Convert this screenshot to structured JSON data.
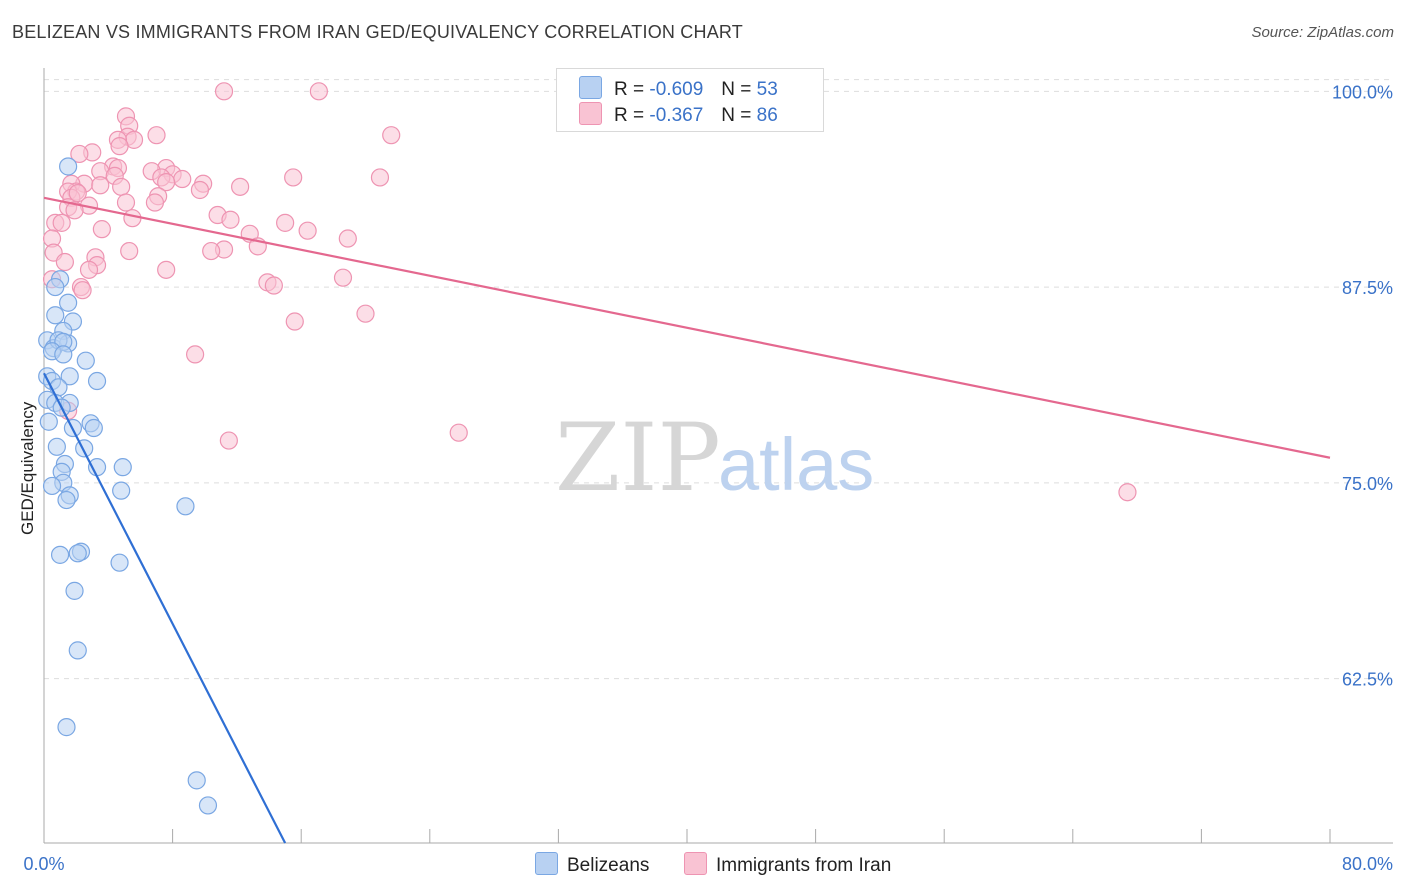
{
  "header": {
    "title": "BELIZEAN VS IMMIGRANTS FROM IRAN GED/EQUIVALENCY CORRELATION CHART",
    "source": "Source: ZipAtlas.com"
  },
  "watermark": {
    "zip": "ZIP",
    "atlas": "atlas"
  },
  "colors": {
    "blue_fill": "#b8d1f2",
    "blue_stroke": "#7aa7e3",
    "blue_line": "#2f6fd4",
    "pink_fill": "#f9c3d3",
    "pink_stroke": "#ee94b2",
    "pink_line": "#e4688f",
    "axis_text": "#3a72c8",
    "grid": "#dddddd"
  },
  "legend_top": {
    "rows": [
      {
        "r_label": "R =",
        "r_value": "-0.609",
        "n_label": "N =",
        "n_value": "53"
      },
      {
        "r_label": "R =",
        "r_value": "-0.367",
        "n_label": "N =",
        "n_value": "86"
      }
    ]
  },
  "chart_data": {
    "type": "scatter",
    "title": "BELIZEAN VS IMMIGRANTS FROM IRAN GED/EQUIVALENCY CORRELATION CHART",
    "xlabel": "",
    "ylabel": "GED/Equivalency",
    "xlim": [
      0,
      80
    ],
    "ylim": [
      52,
      102
    ],
    "x_tick_labels": [
      "0.0%",
      "80.0%"
    ],
    "y_ticks": [
      62.5,
      75.0,
      87.5,
      100.0
    ],
    "y_tick_labels": [
      "62.5%",
      "75.0%",
      "87.5%",
      "100.0%"
    ],
    "grid": true,
    "legend_position": "bottom",
    "series": [
      {
        "name": "Belizeans",
        "r": -0.609,
        "n": 53,
        "trend": {
          "x": [
            0.0,
            15.0
          ],
          "y": [
            82.0,
            52.0
          ]
        },
        "points": [
          [
            1.5,
            95.2
          ],
          [
            1.0,
            88.0
          ],
          [
            0.7,
            87.5
          ],
          [
            1.5,
            86.5
          ],
          [
            0.7,
            85.7
          ],
          [
            1.8,
            85.3
          ],
          [
            1.2,
            84.7
          ],
          [
            0.2,
            84.1
          ],
          [
            0.6,
            83.6
          ],
          [
            1.5,
            83.9
          ],
          [
            0.9,
            84.1
          ],
          [
            1.2,
            84.0
          ],
          [
            0.5,
            83.4
          ],
          [
            2.6,
            82.8
          ],
          [
            1.2,
            83.2
          ],
          [
            1.6,
            81.8
          ],
          [
            3.3,
            81.5
          ],
          [
            0.2,
            81.8
          ],
          [
            0.5,
            81.5
          ],
          [
            0.9,
            81.1
          ],
          [
            0.2,
            80.3
          ],
          [
            0.7,
            80.1
          ],
          [
            1.6,
            80.1
          ],
          [
            1.1,
            79.8
          ],
          [
            0.3,
            78.9
          ],
          [
            2.9,
            78.8
          ],
          [
            3.1,
            78.5
          ],
          [
            1.8,
            78.5
          ],
          [
            2.5,
            77.2
          ],
          [
            0.8,
            77.3
          ],
          [
            1.3,
            76.2
          ],
          [
            3.3,
            76.0
          ],
          [
            4.9,
            76.0
          ],
          [
            1.1,
            75.7
          ],
          [
            1.2,
            75.0
          ],
          [
            0.5,
            74.8
          ],
          [
            4.8,
            74.5
          ],
          [
            1.6,
            74.2
          ],
          [
            1.4,
            73.9
          ],
          [
            8.8,
            73.5
          ],
          [
            2.3,
            70.6
          ],
          [
            2.1,
            70.5
          ],
          [
            1.0,
            70.4
          ],
          [
            4.7,
            69.9
          ],
          [
            1.9,
            68.1
          ],
          [
            2.1,
            64.3
          ],
          [
            1.4,
            59.4
          ],
          [
            9.5,
            56.0
          ],
          [
            10.2,
            54.4
          ]
        ]
      },
      {
        "name": "Immigrants from Iran",
        "r": -0.367,
        "n": 86,
        "trend": {
          "x": [
            0.0,
            80.0
          ],
          "y": [
            93.2,
            76.6
          ]
        },
        "points": [
          [
            11.2,
            100.0
          ],
          [
            17.1,
            100.0
          ],
          [
            5.1,
            98.4
          ],
          [
            5.3,
            97.8
          ],
          [
            7.0,
            97.2
          ],
          [
            5.2,
            97.1
          ],
          [
            21.6,
            97.2
          ],
          [
            5.6,
            96.9
          ],
          [
            4.6,
            96.9
          ],
          [
            4.7,
            96.5
          ],
          [
            3.0,
            96.1
          ],
          [
            2.2,
            96.0
          ],
          [
            7.6,
            95.1
          ],
          [
            4.3,
            95.2
          ],
          [
            4.6,
            95.1
          ],
          [
            6.7,
            94.9
          ],
          [
            3.5,
            94.9
          ],
          [
            8.0,
            94.7
          ],
          [
            4.4,
            94.6
          ],
          [
            7.3,
            94.5
          ],
          [
            15.5,
            94.5
          ],
          [
            20.9,
            94.5
          ],
          [
            8.6,
            94.4
          ],
          [
            7.6,
            94.2
          ],
          [
            9.9,
            94.1
          ],
          [
            12.2,
            93.9
          ],
          [
            2.5,
            94.1
          ],
          [
            1.7,
            94.1
          ],
          [
            3.5,
            94.0
          ],
          [
            4.8,
            93.9
          ],
          [
            9.7,
            93.7
          ],
          [
            2.0,
            93.6
          ],
          [
            1.5,
            93.6
          ],
          [
            7.1,
            93.3
          ],
          [
            1.7,
            93.2
          ],
          [
            6.9,
            92.9
          ],
          [
            5.1,
            92.9
          ],
          [
            2.8,
            92.7
          ],
          [
            1.5,
            92.6
          ],
          [
            1.9,
            92.4
          ],
          [
            10.8,
            92.1
          ],
          [
            5.5,
            91.9
          ],
          [
            11.6,
            91.8
          ],
          [
            15.0,
            91.6
          ],
          [
            0.7,
            91.6
          ],
          [
            1.1,
            91.6
          ],
          [
            3.6,
            91.2
          ],
          [
            16.4,
            91.1
          ],
          [
            12.8,
            90.9
          ],
          [
            18.9,
            90.6
          ],
          [
            0.5,
            90.6
          ],
          [
            13.3,
            90.1
          ],
          [
            11.2,
            89.9
          ],
          [
            10.4,
            89.8
          ],
          [
            5.3,
            89.8
          ],
          [
            0.6,
            89.7
          ],
          [
            3.2,
            89.4
          ],
          [
            1.3,
            89.1
          ],
          [
            3.3,
            88.9
          ],
          [
            2.8,
            88.6
          ],
          [
            7.6,
            88.6
          ],
          [
            18.6,
            88.1
          ],
          [
            0.5,
            88.0
          ],
          [
            13.9,
            87.8
          ],
          [
            14.3,
            87.6
          ],
          [
            2.3,
            87.5
          ],
          [
            2.4,
            87.3
          ],
          [
            20.0,
            85.8
          ],
          [
            15.6,
            85.3
          ],
          [
            9.4,
            83.2
          ],
          [
            1.5,
            79.6
          ],
          [
            11.5,
            77.7
          ],
          [
            25.8,
            78.2
          ],
          [
            67.4,
            74.4
          ],
          [
            2.1,
            93.5
          ]
        ]
      }
    ]
  },
  "bottom_legend": [
    {
      "label": "Belizeans"
    },
    {
      "label": "Immigrants from Iran"
    }
  ]
}
